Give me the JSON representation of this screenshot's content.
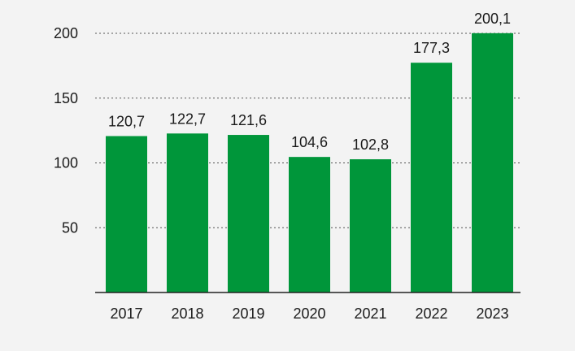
{
  "chart_data": {
    "type": "bar",
    "categories": [
      "2017",
      "2018",
      "2019",
      "2020",
      "2021",
      "2022",
      "2023"
    ],
    "values": [
      120.7,
      122.7,
      121.6,
      104.6,
      102.8,
      177.3,
      200.1
    ],
    "value_labels": [
      "120,7",
      "122,7",
      "121,6",
      "104,6",
      "102,8",
      "177,3",
      "200,1"
    ],
    "yticks": [
      50,
      100,
      150,
      200
    ],
    "ytick_labels": [
      "50",
      "100",
      "150",
      "200"
    ],
    "ylim": [
      0,
      200
    ],
    "grid": true,
    "bar_color": "#00963a",
    "title": "",
    "xlabel": "",
    "ylabel": ""
  }
}
